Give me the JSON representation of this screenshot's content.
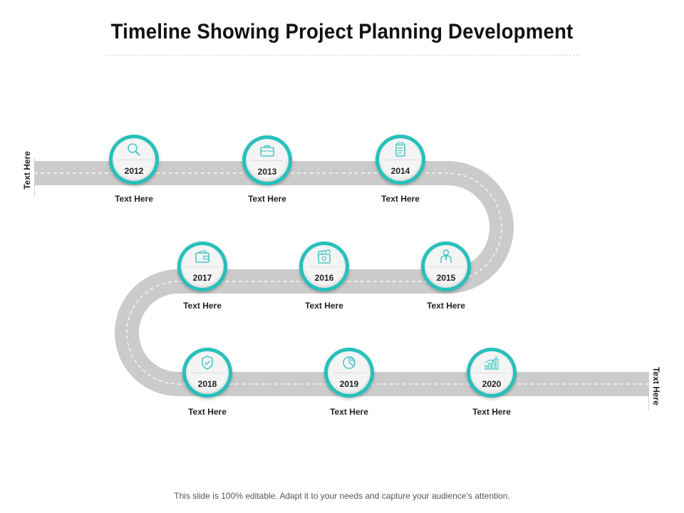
{
  "title": "Timeline Showing Project Planning Development",
  "side_labels": {
    "left": "Text Here",
    "right": "Text Here"
  },
  "milestones": [
    {
      "year": "2012",
      "caption": "Text Here",
      "icon": "magnifier-icon"
    },
    {
      "year": "2013",
      "caption": "Text Here",
      "icon": "briefcase-icon"
    },
    {
      "year": "2014",
      "caption": "Text Here",
      "icon": "clipboard-icon"
    },
    {
      "year": "2015",
      "caption": "Text Here",
      "icon": "businessman-icon"
    },
    {
      "year": "2016",
      "caption": "Text Here",
      "icon": "clapperboard-icon"
    },
    {
      "year": "2017",
      "caption": "Text Here",
      "icon": "wallet-icon"
    },
    {
      "year": "2018",
      "caption": "Text Here",
      "icon": "shield-icon"
    },
    {
      "year": "2019",
      "caption": "Text Here",
      "icon": "pie-chart-icon"
    },
    {
      "year": "2020",
      "caption": "Text Here",
      "icon": "bar-chart-icon"
    }
  ],
  "colors": {
    "accent": "#27c0bc",
    "road": "#cbcbcb",
    "road_line": "#ffffff"
  },
  "footer": "This slide is 100% editable. Adapt it to your needs and capture your audience’s attention."
}
